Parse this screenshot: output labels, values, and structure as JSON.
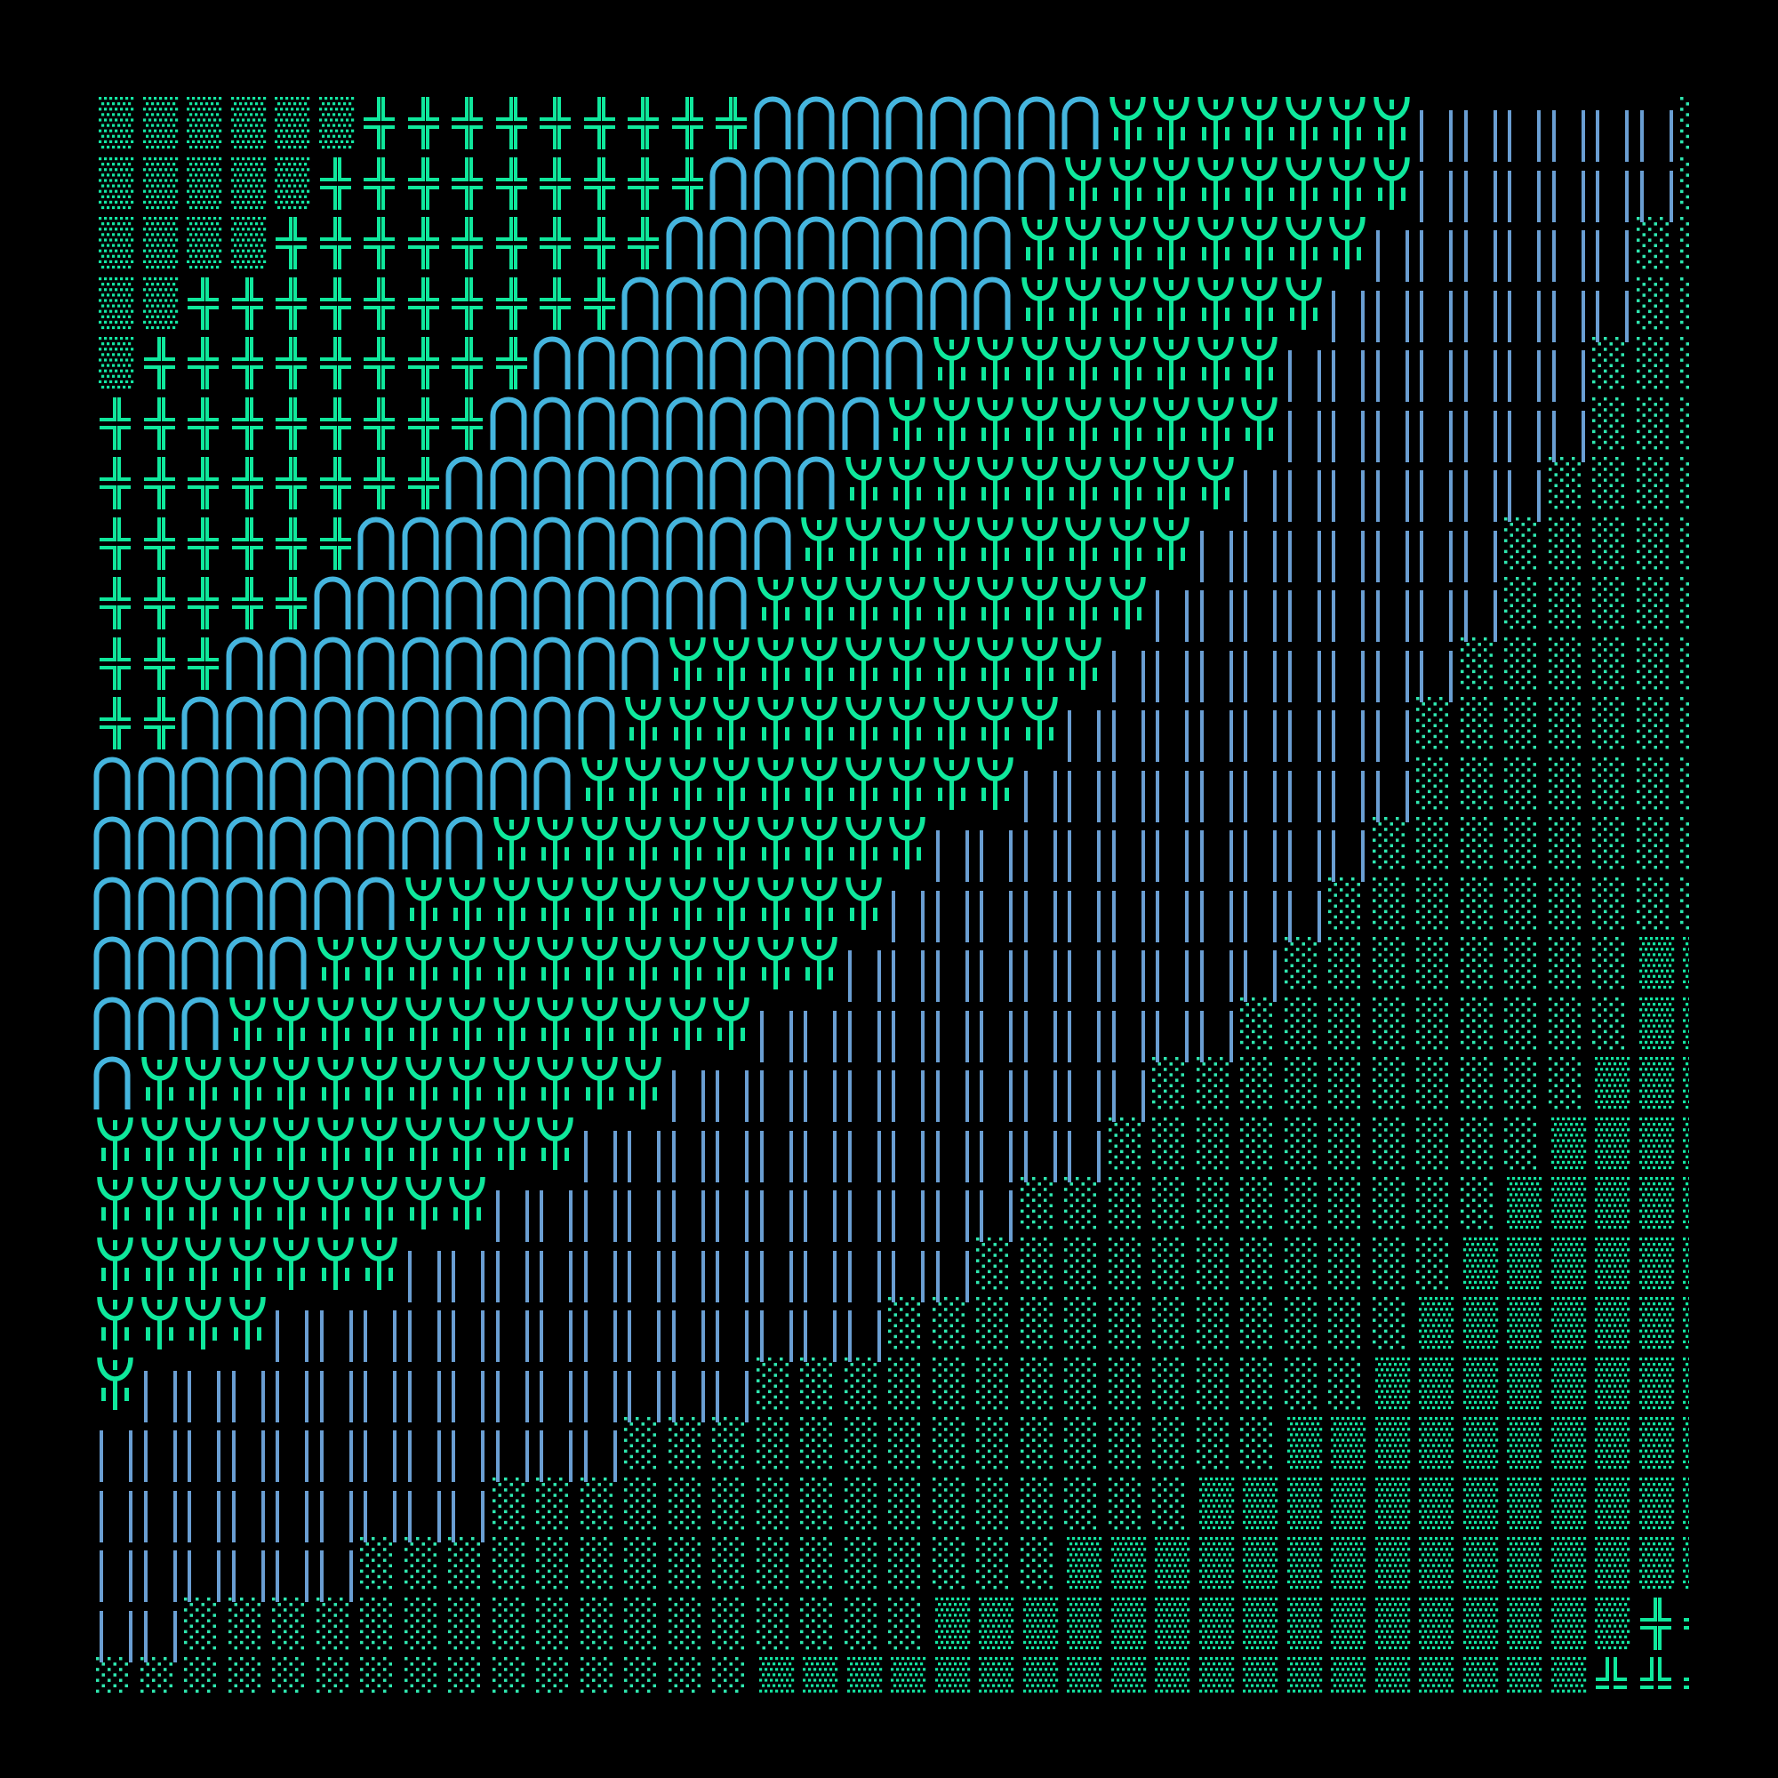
{
  "canvas": {
    "background": "#000000"
  },
  "palette": {
    "▒": "#14e6a2",
    "░": "#2ee8b0",
    "╬": "#0fe89c",
    "╩": "#0fe89c",
    "∩": "#45b5de",
    "Ψ": "#0fe89c",
    "‖": "#6a9ed2"
  },
  "glyph_rows": [
    [
      [
        "▒",
        6
      ],
      [
        "╬",
        9
      ],
      [
        "∩",
        8
      ],
      [
        "Ψ",
        7
      ],
      [
        "‖",
        6
      ],
      [
        "░",
        1
      ]
    ],
    [
      [
        "▒",
        5
      ],
      [
        "╬",
        9
      ],
      [
        "∩",
        8
      ],
      [
        "Ψ",
        8
      ],
      [
        "‖",
        6
      ],
      [
        "░",
        1
      ]
    ],
    [
      [
        "▒",
        4
      ],
      [
        "╬",
        9
      ],
      [
        "∩",
        8
      ],
      [
        "Ψ",
        8
      ],
      [
        "‖",
        6
      ],
      [
        "░",
        2
      ]
    ],
    [
      [
        "▒",
        2
      ],
      [
        "╬",
        10
      ],
      [
        "∩",
        9
      ],
      [
        "Ψ",
        7
      ],
      [
        "‖",
        7
      ],
      [
        "░",
        2
      ]
    ],
    [
      [
        "▒",
        1
      ],
      [
        "╬",
        9
      ],
      [
        "∩",
        9
      ],
      [
        "Ψ",
        8
      ],
      [
        "‖",
        7
      ],
      [
        "░",
        3
      ]
    ],
    [
      [
        "╬",
        9
      ],
      [
        "∩",
        9
      ],
      [
        "Ψ",
        9
      ],
      [
        "‖",
        7
      ],
      [
        "░",
        3
      ]
    ],
    [
      [
        "╬",
        8
      ],
      [
        "∩",
        9
      ],
      [
        "Ψ",
        9
      ],
      [
        "‖",
        7
      ],
      [
        "░",
        4
      ]
    ],
    [
      [
        "╬",
        6
      ],
      [
        "∩",
        10
      ],
      [
        "Ψ",
        9
      ],
      [
        "‖",
        7
      ],
      [
        "░",
        5
      ]
    ],
    [
      [
        "╬",
        5
      ],
      [
        "∩",
        10
      ],
      [
        "Ψ",
        9
      ],
      [
        "‖",
        8
      ],
      [
        "░",
        5
      ]
    ],
    [
      [
        "╬",
        3
      ],
      [
        "∩",
        10
      ],
      [
        "Ψ",
        10
      ],
      [
        "‖",
        8
      ],
      [
        "░",
        6
      ]
    ],
    [
      [
        "╬",
        2
      ],
      [
        "∩",
        10
      ],
      [
        "Ψ",
        10
      ],
      [
        "‖",
        8
      ],
      [
        "░",
        7
      ]
    ],
    [
      [
        "∩",
        11
      ],
      [
        "Ψ",
        10
      ],
      [
        "‖",
        9
      ],
      [
        "░",
        7
      ]
    ],
    [
      [
        "∩",
        9
      ],
      [
        "Ψ",
        10
      ],
      [
        "‖",
        10
      ],
      [
        "░",
        8
      ]
    ],
    [
      [
        "∩",
        7
      ],
      [
        "Ψ",
        11
      ],
      [
        "‖",
        10
      ],
      [
        "░",
        9
      ]
    ],
    [
      [
        "∩",
        5
      ],
      [
        "Ψ",
        12
      ],
      [
        "‖",
        10
      ],
      [
        "░",
        8
      ],
      [
        "▒",
        2
      ]
    ],
    [
      [
        "∩",
        3
      ],
      [
        "Ψ",
        12
      ],
      [
        "‖",
        11
      ],
      [
        "░",
        9
      ],
      [
        "▒",
        2
      ]
    ],
    [
      [
        "∩",
        1
      ],
      [
        "Ψ",
        12
      ],
      [
        "‖",
        11
      ],
      [
        "░",
        10
      ],
      [
        "▒",
        3
      ]
    ],
    [
      [
        "Ψ",
        11
      ],
      [
        "‖",
        12
      ],
      [
        "░",
        10
      ],
      [
        "▒",
        4
      ]
    ],
    [
      [
        "Ψ",
        9
      ],
      [
        "‖",
        12
      ],
      [
        "░",
        11
      ],
      [
        "▒",
        5
      ]
    ],
    [
      [
        "Ψ",
        7
      ],
      [
        "‖",
        13
      ],
      [
        "░",
        11
      ],
      [
        "▒",
        6
      ]
    ],
    [
      [
        "Ψ",
        4
      ],
      [
        "‖",
        14
      ],
      [
        "░",
        12
      ],
      [
        "▒",
        7
      ]
    ],
    [
      [
        "Ψ",
        1
      ],
      [
        "‖",
        14
      ],
      [
        "░",
        14
      ],
      [
        "▒",
        8
      ]
    ],
    [
      [
        "‖",
        12
      ],
      [
        "░",
        15
      ],
      [
        "▒",
        10
      ]
    ],
    [
      [
        "‖",
        9
      ],
      [
        "░",
        16
      ],
      [
        "▒",
        12
      ]
    ],
    [
      [
        "‖",
        6
      ],
      [
        "░",
        16
      ],
      [
        "▒",
        15
      ]
    ],
    [
      [
        "‖",
        2
      ],
      [
        "░",
        17
      ],
      [
        "▒",
        16
      ],
      [
        "╬",
        2
      ]
    ],
    [
      [
        "░",
        15
      ],
      [
        "▒",
        19
      ],
      [
        "╩",
        3
      ]
    ]
  ]
}
